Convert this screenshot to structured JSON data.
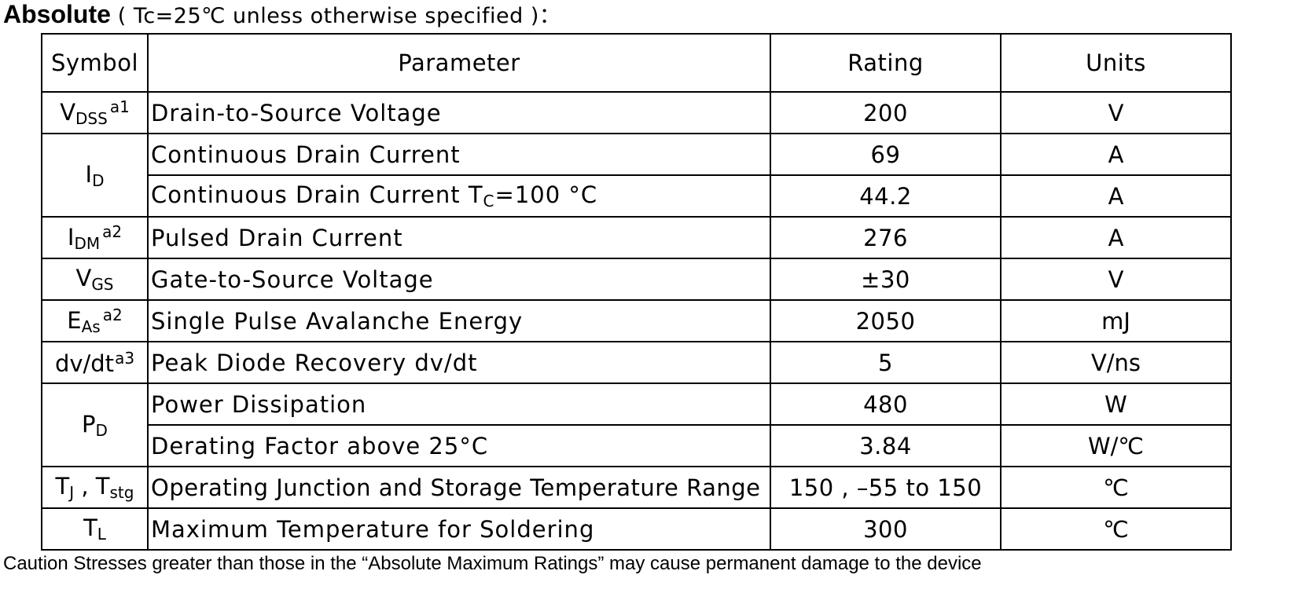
{
  "heading": {
    "bold": "Absolute",
    "condition": "( Tc=25℃  unless otherwise specified )："
  },
  "table": {
    "headers": {
      "symbol": "Symbol",
      "parameter": "Parameter",
      "rating": "Rating",
      "units": "Units"
    },
    "rows": [
      {
        "sym_main": "V",
        "sym_sub": "DSS",
        "sym_sup": "a1",
        "parameter": "Drain-to-Source Voltage",
        "rating": "200",
        "unit": "V"
      },
      {
        "sym_main": "I",
        "sym_sub": "D",
        "sym_sup": "",
        "parameter": "Continuous Drain Current",
        "rating": "69",
        "unit": "A"
      },
      {
        "parameter_main": "Continuous Drain Current T",
        "parameter_sub": "C",
        "parameter_tail": "=100 °C",
        "rating": "44.2",
        "unit": "A"
      },
      {
        "sym_main": "I",
        "sym_sub": "DM",
        "sym_sup": "a2",
        "parameter": "Pulsed Drain Current",
        "rating": "276",
        "unit": "A"
      },
      {
        "sym_main": "V",
        "sym_sub": "GS",
        "sym_sup": "",
        "parameter": "Gate-to-Source Voltage",
        "rating": "±30",
        "unit": "V"
      },
      {
        "sym_main": "E",
        "sym_sub": "As",
        "sym_sup": "a2",
        "parameter": "Single Pulse Avalanche Energy",
        "rating": "2050",
        "unit": "mJ"
      },
      {
        "sym_main": "dv/dt",
        "sym_sub": "",
        "sym_sup": "a3",
        "parameter": "Peak Diode Recovery dv/dt",
        "rating": "5",
        "unit": "V/ns"
      },
      {
        "sym_main": "P",
        "sym_sub": "D",
        "sym_sup": "",
        "parameter": "Power Dissipation",
        "rating": "480",
        "unit": "W"
      },
      {
        "parameter": "Derating Factor above 25°C",
        "rating": "3.84",
        "unit": "W/℃"
      },
      {
        "sym_main": "T",
        "sym_sub": "J",
        "sym_mid": " , T",
        "sym_sub2": "stg",
        "parameter": "Operating Junction and Storage Temperature Range",
        "rating": "150 , –55 to 150",
        "unit": "℃"
      },
      {
        "sym_main": "T",
        "sym_sub": "L",
        "sym_sup": "",
        "parameter": "Maximum Temperature for Soldering",
        "rating": "300",
        "unit": "℃"
      }
    ]
  },
  "caution": "Caution Stresses greater than those in the  “Absolute Maximum Ratings”  may cause permanent damage to the device"
}
